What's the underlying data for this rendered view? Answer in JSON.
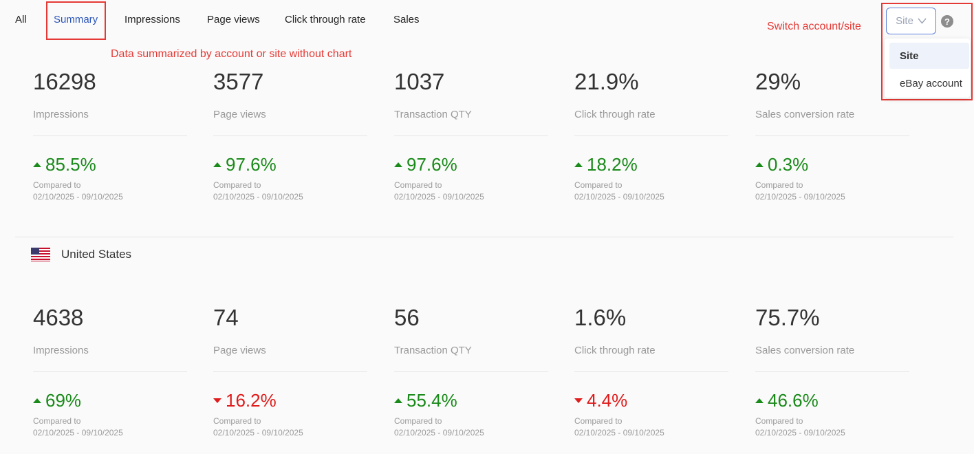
{
  "tabs": [
    {
      "label": "All"
    },
    {
      "label": "Summary"
    },
    {
      "label": "Impressions"
    },
    {
      "label": "Page views"
    },
    {
      "label": "Click through rate"
    },
    {
      "label": "Sales"
    }
  ],
  "annotations": {
    "summary_note": "Data summarized by account or site without chart",
    "switch_note": "Switch account/site"
  },
  "selector": {
    "value": "Site",
    "options": [
      {
        "label": "Site"
      },
      {
        "label": "eBay account"
      }
    ]
  },
  "colors": {
    "up": "#1a8a1a",
    "down": "#e01b1b",
    "accent": "#2b55b9",
    "annotation": "#e53935"
  },
  "summary": {
    "metrics": [
      {
        "value": "16298",
        "label": "Impressions",
        "direction": "up",
        "change": "85.5%",
        "compared_label": "Compared to",
        "compared_range": "02/10/2025 - 09/10/2025"
      },
      {
        "value": "3577",
        "label": "Page views",
        "direction": "up",
        "change": "97.6%",
        "compared_label": "Compared to",
        "compared_range": "02/10/2025 - 09/10/2025"
      },
      {
        "value": "1037",
        "label": "Transaction QTY",
        "direction": "up",
        "change": "97.6%",
        "compared_label": "Compared to",
        "compared_range": "02/10/2025 - 09/10/2025"
      },
      {
        "value": "21.9%",
        "label": "Click through rate",
        "direction": "up",
        "change": "18.2%",
        "compared_label": "Compared to",
        "compared_range": "02/10/2025 - 09/10/2025"
      },
      {
        "value": "29%",
        "label": "Sales conversion rate",
        "direction": "up",
        "change": "0.3%",
        "compared_label": "Compared to",
        "compared_range": "02/10/2025 - 09/10/2025"
      }
    ]
  },
  "site_section": {
    "flag_icon": "us-flag-icon",
    "country": "United States",
    "metrics": [
      {
        "value": "4638",
        "label": "Impressions",
        "direction": "up",
        "change": "69%",
        "compared_label": "Compared to",
        "compared_range": "02/10/2025 - 09/10/2025"
      },
      {
        "value": "74",
        "label": "Page views",
        "direction": "down",
        "change": "16.2%",
        "compared_label": "Compared to",
        "compared_range": "02/10/2025 - 09/10/2025"
      },
      {
        "value": "56",
        "label": "Transaction QTY",
        "direction": "up",
        "change": "55.4%",
        "compared_label": "Compared to",
        "compared_range": "02/10/2025 - 09/10/2025"
      },
      {
        "value": "1.6%",
        "label": "Click through rate",
        "direction": "down",
        "change": "4.4%",
        "compared_label": "Compared to",
        "compared_range": "02/10/2025 - 09/10/2025"
      },
      {
        "value": "75.7%",
        "label": "Sales conversion rate",
        "direction": "up",
        "change": "46.6%",
        "compared_label": "Compared to",
        "compared_range": "02/10/2025 - 09/10/2025"
      }
    ]
  }
}
